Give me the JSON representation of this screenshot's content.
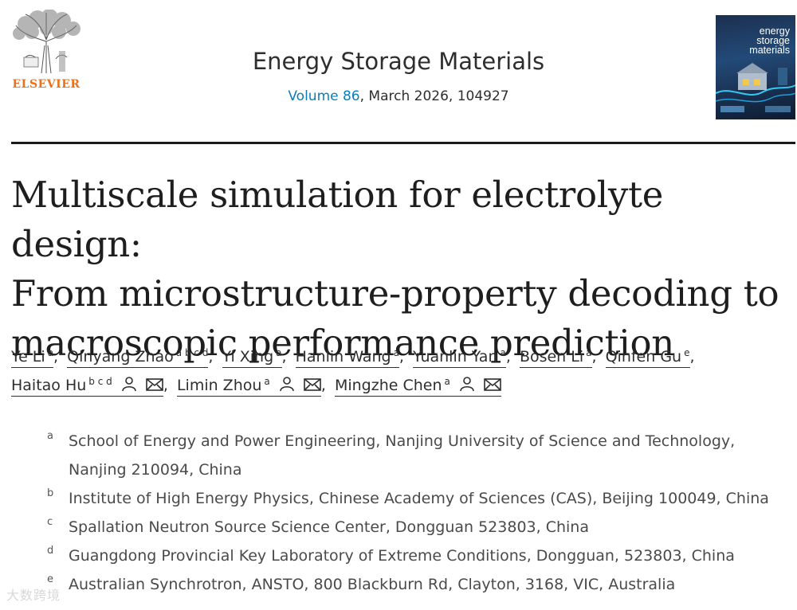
{
  "publisher": {
    "name": "ELSEVIER"
  },
  "journal": {
    "title": "Energy Storage Materials",
    "volume_link": "Volume 86",
    "issue_rest": ", March 2026, 104927",
    "cover_title": "energy\nstorage\nmaterials"
  },
  "article": {
    "title_lines": [
      "Multiscale simulation for electrolyte design:",
      "From microstructure-property decoding to",
      "macroscopic performance prediction"
    ]
  },
  "authors": [
    {
      "name": "Ye Li",
      "sup": "a"
    },
    {
      "name": "Qinyang Zhao",
      "sup": "a b c d"
    },
    {
      "name": "Yi Xing",
      "sup": "a"
    },
    {
      "name": "Hanlin Wang",
      "sup": "a"
    },
    {
      "name": "Yuanlin Yan",
      "sup": "a"
    },
    {
      "name": "Bosen Li",
      "sup": "a"
    },
    {
      "name": "Qinfen Gu",
      "sup": "e"
    },
    {
      "name": "Haitao Hu",
      "sup": "b c d"
    },
    {
      "name": "Limin Zhou",
      "sup": "a"
    },
    {
      "name": "Mingzhe Chen",
      "sup": "a"
    }
  ],
  "affiliations": [
    {
      "letter": "a",
      "lines": [
        "School of Energy and Power Engineering, Nanjing University of Science and Technology,",
        "Nanjing 210094, China"
      ]
    },
    {
      "letter": "b",
      "lines": [
        "Institute of High Energy Physics, Chinese Academy of Sciences (CAS), Beijing 100049, China"
      ]
    },
    {
      "letter": "c",
      "lines": [
        "Spallation Neutron Source Science Center, Dongguan 523803, China"
      ]
    },
    {
      "letter": "d",
      "lines": [
        "Guangdong Provincial Key Laboratory of Extreme Conditions, Dongguan, 523803, China"
      ]
    },
    {
      "letter": "e",
      "lines": [
        "Australian Synchrotron, ANSTO, 800 Blackburn Rd, Clayton, 3168, VIC, Australia"
      ]
    }
  ],
  "watermark": "大数跨境",
  "colors": {
    "link": "#0c7dbb",
    "elsevier_orange": "#e9711c",
    "rule": "#1a1a1a"
  },
  "icons": {
    "person": "person-icon",
    "mail": "envelope-icon"
  }
}
